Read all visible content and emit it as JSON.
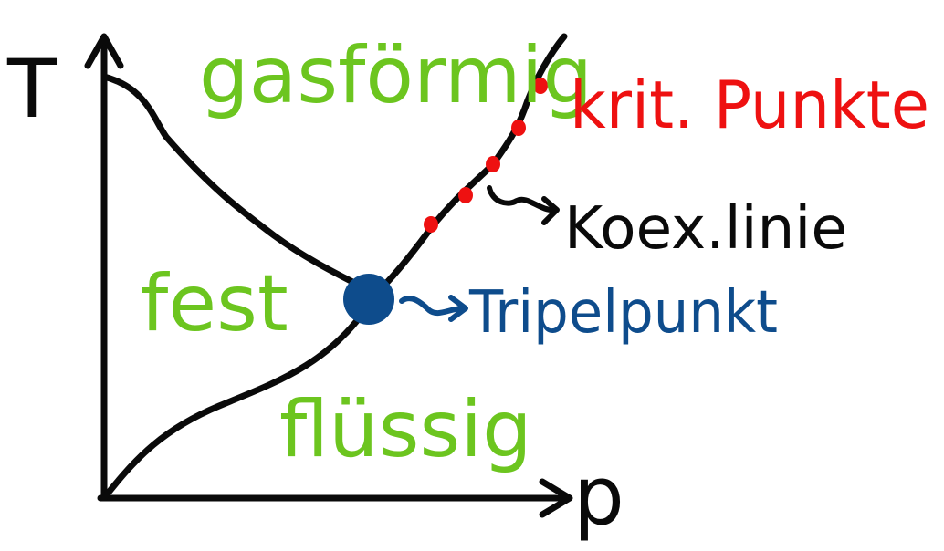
{
  "colors": {
    "line": "#0a0a0a",
    "phase_label": "#6cc51f",
    "critical": "#ee1111",
    "triple": "#0e4c8c",
    "background": "#ffffff"
  },
  "axes": {
    "y_label": "T",
    "x_label": "p"
  },
  "phases": {
    "gas": "gasförmig",
    "solid": "fest",
    "liquid": "flüssig"
  },
  "annotations": {
    "critical_points": "krit. Punkte",
    "coexistence_line": "Koex.linie",
    "triple_point": "Tripelpunkt"
  }
}
